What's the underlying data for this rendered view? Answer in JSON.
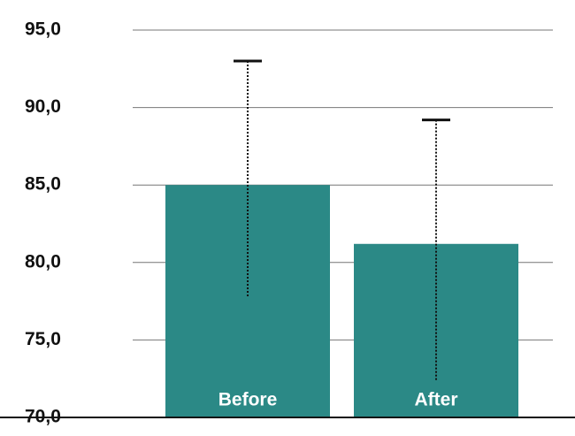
{
  "chart_data": {
    "type": "bar",
    "categories": [
      "Before",
      "After"
    ],
    "values": [
      85.0,
      81.2
    ],
    "error_upper": [
      8.0,
      8.0
    ],
    "error_lower": [
      7.2,
      8.8
    ],
    "color": "#2b8986",
    "ylim": [
      70,
      95
    ],
    "yticks": [
      {
        "value": 70,
        "label": "70,0"
      },
      {
        "value": 75,
        "label": "75,0"
      },
      {
        "value": 80,
        "label": "80,0"
      },
      {
        "value": 85,
        "label": "85,0"
      },
      {
        "value": 90,
        "label": "90,0"
      },
      {
        "value": 95,
        "label": "95,0"
      }
    ],
    "grid": true
  }
}
